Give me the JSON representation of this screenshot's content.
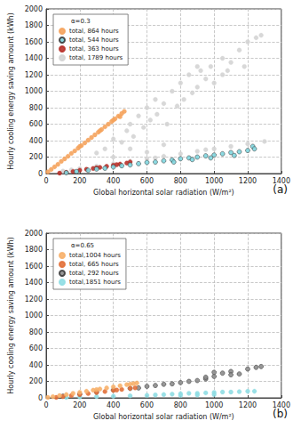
{
  "chart_data": [
    {
      "type": "scatter",
      "panel_label": "(a)",
      "legend_title": "α=0.3",
      "legend": "upper left",
      "grid": true,
      "x_label": "Global horizontal solar radiation (W/m²)",
      "y_label": "Hourly cooling energy saving amount (kWh)",
      "xlim": [
        0,
        1400
      ],
      "xticks": [
        0,
        200,
        400,
        600,
        800,
        1000,
        1200,
        1400
      ],
      "ylim": [
        0,
        2000
      ],
      "yticks": [
        0,
        200,
        400,
        600,
        800,
        1000,
        1200,
        1400,
        1600,
        1800,
        2000
      ],
      "series": [
        {
          "name": "total, 864 hours",
          "color": "#f5a35c",
          "marker": "circle",
          "x": [
            10,
            30,
            50,
            70,
            90,
            110,
            130,
            150,
            170,
            190,
            210,
            230,
            250,
            270,
            290,
            310,
            330,
            350,
            370,
            390,
            410,
            430,
            450,
            465,
            200,
            320,
            400,
            440
          ],
          "values": [
            20,
            50,
            82,
            112,
            148,
            178,
            210,
            245,
            275,
            308,
            340,
            372,
            405,
            438,
            470,
            502,
            535,
            568,
            600,
            632,
            665,
            698,
            730,
            755,
            330,
            520,
            650,
            690
          ]
        },
        {
          "name": "total, 544 hours",
          "color": "#7fd6df",
          "marker": "edged-circle",
          "x": [
            120,
            180,
            250,
            300,
            350,
            400,
            450,
            500,
            550,
            600,
            650,
            700,
            750,
            800,
            850,
            900,
            950,
            1000,
            1050,
            1100,
            1150,
            1200,
            1230,
            1240,
            1120,
            980,
            870,
            760
          ],
          "values": [
            10,
            25,
            40,
            55,
            65,
            80,
            95,
            105,
            120,
            135,
            140,
            155,
            165,
            180,
            190,
            200,
            215,
            225,
            240,
            255,
            265,
            280,
            330,
            300,
            220,
            190,
            170,
            140
          ]
        },
        {
          "name": "total, 363 hours",
          "color": "#b8312a",
          "marker": "circle",
          "x": [
            80,
            120,
            160,
            200,
            240,
            280,
            320,
            360,
            400,
            440,
            480,
            500,
            300,
            420
          ],
          "values": [
            5,
            15,
            25,
            40,
            52,
            62,
            75,
            88,
            100,
            115,
            128,
            140,
            70,
            108
          ]
        },
        {
          "name": "total, 1789 hours",
          "color": "#d4d4d4",
          "marker": "circle",
          "x": [
            300,
            350,
            400,
            450,
            480,
            500,
            520,
            550,
            580,
            600,
            620,
            650,
            660,
            700,
            720,
            750,
            780,
            800,
            820,
            850,
            870,
            900,
            920,
            950,
            980,
            1000,
            1050,
            1080,
            1100,
            1150,
            1180,
            1200,
            1250,
            1280,
            1050,
            900,
            100,
            200,
            300,
            400,
            500,
            600,
            700,
            800,
            900,
            1000,
            1100,
            1200,
            1300,
            150,
            650,
            950,
            400,
            500,
            600,
            700
          ],
          "values": [
            250,
            300,
            420,
            380,
            520,
            600,
            450,
            700,
            560,
            800,
            650,
            900,
            720,
            850,
            600,
            1000,
            820,
            1100,
            900,
            1200,
            980,
            1050,
            1250,
            1150,
            1300,
            1100,
            1400,
            1250,
            1350,
            1500,
            1300,
            1600,
            1650,
            1680,
            1200,
            1300,
            30,
            60,
            90,
            120,
            150,
            180,
            210,
            240,
            270,
            300,
            330,
            360,
            390,
            45,
            190,
            290,
            200,
            300,
            260,
            350
          ]
        }
      ]
    },
    {
      "type": "scatter",
      "panel_label": "(b)",
      "legend_title": "α=0.65",
      "legend": "upper left",
      "grid": true,
      "x_label": "Global horizontal solar radiation (W/m²)",
      "y_label": "Hourly cooling energy saving amount (kWh)",
      "xlim": [
        0,
        1400
      ],
      "xticks": [
        0,
        200,
        400,
        600,
        800,
        1000,
        1200,
        1400
      ],
      "ylim": [
        0,
        2000
      ],
      "yticks": [
        0,
        200,
        400,
        600,
        800,
        1000,
        1200,
        1400,
        1600,
        1800,
        2000
      ],
      "series": [
        {
          "name": "total,1004 hours",
          "color": "#f7b06a",
          "marker": "circle",
          "x": [
            10,
            40,
            80,
            120,
            160,
            200,
            240,
            280,
            320,
            360,
            400,
            440,
            480,
            520,
            540,
            300,
            500
          ],
          "values": [
            5,
            14,
            27,
            40,
            54,
            67,
            80,
            93,
            107,
            120,
            133,
            147,
            160,
            173,
            180,
            100,
            167
          ]
        },
        {
          "name": "total, 665 hours",
          "color": "#e2703a",
          "marker": "circle",
          "x": [
            60,
            100,
            150,
            200,
            250,
            300,
            350,
            400,
            450,
            500,
            530,
            420
          ],
          "values": [
            5,
            15,
            28,
            40,
            52,
            65,
            77,
            90,
            102,
            115,
            122,
            95
          ]
        },
        {
          "name": "total, 292 hours",
          "color": "#8c8c8c",
          "marker": "edged-circle",
          "x": [
            100,
            200,
            300,
            400,
            500,
            550,
            600,
            650,
            700,
            750,
            800,
            850,
            900,
            950,
            1000,
            1050,
            1100,
            1150,
            1200,
            1250,
            1280,
            1100,
            950,
            1000
          ],
          "values": [
            20,
            45,
            70,
            95,
            115,
            120,
            140,
            150,
            165,
            170,
            185,
            200,
            210,
            230,
            260,
            300,
            320,
            290,
            350,
            370,
            380,
            280,
            250,
            310
          ]
        },
        {
          "name": "total,1851 hours",
          "color": "#8fdde3",
          "marker": "circle",
          "x": [
            120,
            200,
            300,
            400,
            500,
            600,
            650,
            700,
            750,
            800,
            850,
            900,
            950,
            1000,
            1050,
            1100,
            1150,
            1200,
            1240,
            1000,
            900,
            800
          ],
          "values": [
            5,
            10,
            15,
            20,
            25,
            30,
            35,
            40,
            45,
            50,
            55,
            55,
            60,
            65,
            70,
            70,
            75,
            80,
            80,
            40,
            35,
            30
          ]
        }
      ]
    }
  ]
}
